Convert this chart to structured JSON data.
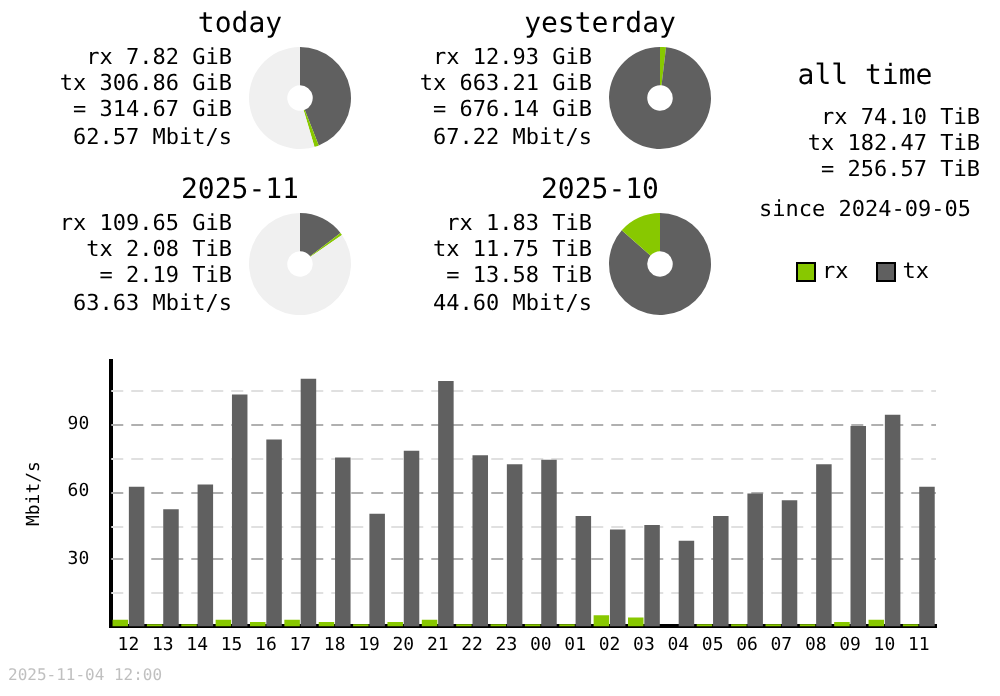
{
  "chart_data": [
    {
      "type": "donut",
      "title": "today",
      "categories": [
        null,
        null,
        null
      ],
      "values": [
        44,
        1.4,
        54.6
      ],
      "colors": [
        "#606060",
        "#88c800",
        "#f0f0f0"
      ],
      "annotations": [
        "rx 7.82 GiB",
        "tx 306.86 GiB",
        "= 314.67 GiB",
        "62.57 Mbit/s"
      ]
    },
    {
      "type": "donut",
      "title": "yesterday",
      "categories": [
        null,
        null
      ],
      "values": [
        1.9,
        98.1
      ],
      "colors": [
        "#88c800",
        "#606060"
      ],
      "annotations": [
        "rx 12.93 GiB",
        "tx 663.21 GiB",
        "= 676.14 GiB",
        "67.22 Mbit/s"
      ]
    },
    {
      "type": "donut",
      "title": "2025-11",
      "categories": [
        null,
        null,
        null
      ],
      "values": [
        14.6,
        0.8,
        84.6
      ],
      "colors": [
        "#606060",
        "#88c800",
        "#f0f0f0"
      ],
      "annotations": [
        "rx 109.65 GiB",
        "tx 2.08 TiB",
        "= 2.19 TiB",
        "63.63 Mbit/s"
      ]
    },
    {
      "type": "donut",
      "title": "2025-10",
      "categories": [
        null,
        null
      ],
      "values": [
        86.5,
        13.5
      ],
      "colors": [
        "#606060",
        "#88c800"
      ],
      "annotations": [
        "rx 1.83 TiB",
        "tx 11.75 TiB",
        "= 13.58 TiB",
        "44.60 Mbit/s"
      ]
    },
    {
      "type": "other",
      "title": "all time",
      "annotations": [
        "rx 74.10 TiB",
        "tx 182.47 TiB",
        "= 256.57 TiB",
        "since 2024-09-05"
      ]
    },
    {
      "type": "bar",
      "ylabel": "Mbit/s",
      "categories": [
        "12",
        "13",
        "14",
        "15",
        "16",
        "17",
        "18",
        "19",
        "20",
        "21",
        "22",
        "23",
        "00",
        "01",
        "02",
        "03",
        "04",
        "05",
        "06",
        "07",
        "08",
        "09",
        "10",
        "11"
      ],
      "series": [
        {
          "name": "rx",
          "color": "#88c800",
          "values": [
            3,
            1,
            1,
            3,
            2,
            3,
            2,
            1,
            2,
            3,
            1,
            1,
            1,
            1,
            5,
            4,
            0,
            1,
            1,
            1,
            1,
            2,
            3,
            1
          ]
        },
        {
          "name": "tx",
          "color": "#606060",
          "values": [
            62,
            52,
            63,
            103,
            83,
            110,
            75,
            50,
            78,
            109,
            76,
            72,
            74,
            49,
            43,
            45,
            38,
            49,
            59,
            56,
            72,
            89,
            94,
            62
          ]
        }
      ],
      "ylim": [
        0,
        118
      ],
      "yticks": [
        {
          "value": 15,
          "label": null
        },
        30,
        {
          "value": 45,
          "label": null
        },
        60,
        {
          "value": 75,
          "label": null
        },
        90,
        {
          "value": 105,
          "label": null
        }
      ],
      "grid": "y",
      "legend": "top right",
      "annotations": [
        "2025-11-04 12:00"
      ]
    }
  ]
}
